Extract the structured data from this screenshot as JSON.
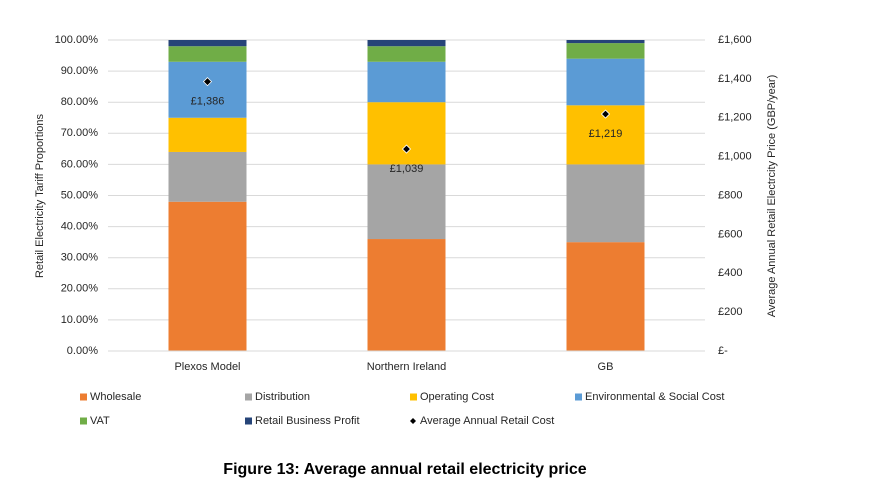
{
  "chart_data": {
    "type": "bar",
    "stacked": true,
    "caption": "Figure 13: Average annual retail electricity price",
    "y_label": "Retail Electricity Tariff Proportions",
    "y2_label": "Average Annual Retail Electrcity  Price (GBP/year)",
    "categories": [
      "Plexos Model",
      "Northern Ireland",
      "GB"
    ],
    "series": [
      {
        "name": "Wholesale",
        "color": "#ed7d31",
        "values": [
          48,
          36,
          35
        ]
      },
      {
        "name": "Distribution",
        "color": "#a5a5a5",
        "values": [
          16,
          24,
          25
        ]
      },
      {
        "name": "Operating Cost",
        "color": "#ffc000",
        "values": [
          11,
          20,
          19
        ]
      },
      {
        "name": "Environmental & Social Cost",
        "color": "#5b9bd5",
        "values": [
          18,
          13,
          15
        ]
      },
      {
        "name": "VAT",
        "color": "#70ad47",
        "values": [
          5,
          5,
          5
        ]
      },
      {
        "name": "Retail Business Profit",
        "color": "#264478",
        "values": [
          2,
          2,
          1
        ]
      },
      {
        "name": "Average Annual Retail Cost",
        "color": "#000000",
        "axis": "y2",
        "marker": "diamond",
        "values": [
          1386,
          1039,
          1219
        ],
        "value_labels": [
          "£1,386",
          "£1,039",
          "£1,219"
        ]
      }
    ],
    "ylim": [
      0,
      100
    ],
    "yticks": [
      {
        "value": 0,
        "label": "0.00%"
      },
      {
        "value": 10,
        "label": "10.00%"
      },
      {
        "value": 20,
        "label": "20.00%"
      },
      {
        "value": 30,
        "label": "30.00%"
      },
      {
        "value": 40,
        "label": "40.00%"
      },
      {
        "value": 50,
        "label": "50.00%"
      },
      {
        "value": 60,
        "label": "60.00%"
      },
      {
        "value": 70,
        "label": "70.00%"
      },
      {
        "value": 80,
        "label": "80.00%"
      },
      {
        "value": 90,
        "label": "90.00%"
      },
      {
        "value": 100,
        "label": "100.00%"
      }
    ],
    "y2lim": [
      0,
      1600
    ],
    "y2ticks": [
      {
        "value": 0,
        "label": "£-"
      },
      {
        "value": 200,
        "label": "£200"
      },
      {
        "value": 400,
        "label": "£400"
      },
      {
        "value": 600,
        "label": "£600"
      },
      {
        "value": 800,
        "label": "£800"
      },
      {
        "value": 1000,
        "label": "£1,000"
      },
      {
        "value": 1200,
        "label": "£1,200"
      },
      {
        "value": 1400,
        "label": "£1,400"
      },
      {
        "value": 1600,
        "label": "£1,600"
      }
    ],
    "grid": true,
    "legend": "bottom"
  }
}
